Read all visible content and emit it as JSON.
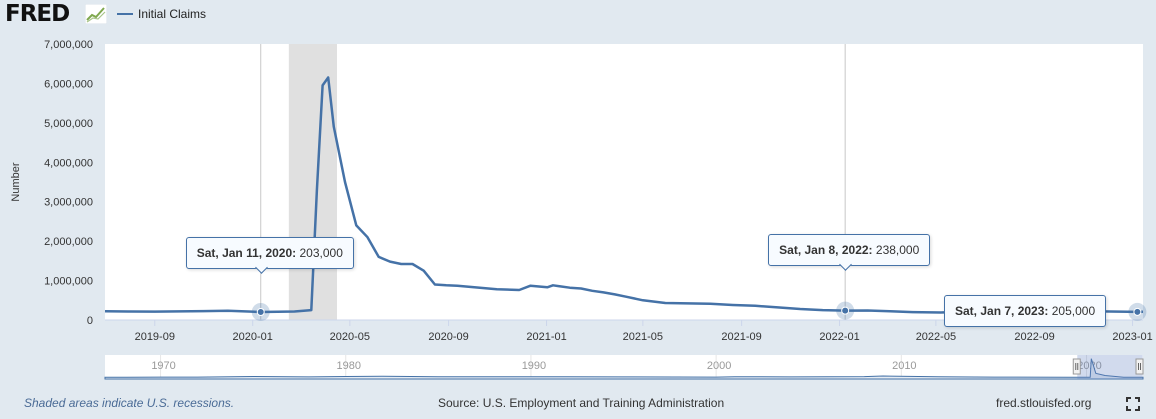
{
  "header": {
    "logo": "FRED",
    "logo_icon": "line-graph-icon",
    "legend_label": "Initial Claims",
    "legend_color": "#4572a7"
  },
  "chart_data": {
    "type": "line",
    "ylabel": "Number",
    "ylim": [
      0,
      7000000
    ],
    "yticks": [
      0,
      1000000,
      2000000,
      3000000,
      4000000,
      5000000,
      6000000,
      7000000
    ],
    "ytick_labels": [
      "0",
      "1,000,000",
      "2,000,000",
      "3,000,000",
      "4,000,000",
      "5,000,000",
      "6,000,000",
      "7,000,000"
    ],
    "xlim": [
      "2019-07-01",
      "2023-01-14"
    ],
    "xticks": [
      "2019-09-01",
      "2020-01-01",
      "2020-05-01",
      "2020-09-01",
      "2021-01-01",
      "2021-05-01",
      "2021-09-01",
      "2022-01-01",
      "2022-05-01",
      "2022-09-01",
      "2023-01-01"
    ],
    "xtick_labels": [
      "2019-09",
      "2020-01",
      "2020-05",
      "2020-09",
      "2021-01",
      "2021-05",
      "2021-09",
      "2022-01",
      "2022-05",
      "2022-09",
      "2023-01"
    ],
    "recession": [
      "2020-02-15",
      "2020-04-15"
    ],
    "grid": "vertical lines at highlighted points",
    "series_color": "#4572a7",
    "series": [
      {
        "name": "Initial Claims",
        "x": [
          "2019-07-01",
          "2019-08-01",
          "2019-09-01",
          "2019-10-01",
          "2019-11-01",
          "2019-12-01",
          "2020-01-11",
          "2020-02-01",
          "2020-02-22",
          "2020-03-14",
          "2020-03-21",
          "2020-03-28",
          "2020-04-04",
          "2020-04-11",
          "2020-04-25",
          "2020-05-09",
          "2020-05-23",
          "2020-06-06",
          "2020-06-20",
          "2020-07-04",
          "2020-07-18",
          "2020-08-01",
          "2020-08-15",
          "2020-08-29",
          "2020-09-12",
          "2020-10-03",
          "2020-10-31",
          "2020-11-28",
          "2020-12-12",
          "2021-01-02",
          "2021-01-09",
          "2021-01-16",
          "2021-01-30",
          "2021-02-13",
          "2021-02-27",
          "2021-03-13",
          "2021-03-27",
          "2021-04-10",
          "2021-05-01",
          "2021-05-29",
          "2021-06-26",
          "2021-07-24",
          "2021-08-21",
          "2021-09-18",
          "2021-10-16",
          "2021-11-13",
          "2021-12-11",
          "2022-01-08",
          "2022-02-05",
          "2022-03-05",
          "2022-04-02",
          "2022-05-07",
          "2022-06-04",
          "2022-07-02",
          "2022-08-06",
          "2022-09-03",
          "2022-10-08",
          "2022-11-05",
          "2022-12-03",
          "2023-01-07",
          "2023-01-14"
        ],
        "values": [
          220000,
          215000,
          212000,
          218000,
          225000,
          235000,
          203000,
          210000,
          215000,
          250000,
          3300000,
          5950000,
          6150000,
          4900000,
          3500000,
          2400000,
          2100000,
          1600000,
          1480000,
          1420000,
          1420000,
          1250000,
          900000,
          880000,
          870000,
          830000,
          780000,
          760000,
          870000,
          830000,
          880000,
          860000,
          820000,
          800000,
          740000,
          700000,
          650000,
          590000,
          500000,
          430000,
          420000,
          410000,
          380000,
          360000,
          320000,
          280000,
          250000,
          238000,
          240000,
          220000,
          200000,
          190000,
          210000,
          230000,
          215000,
          205000,
          220000,
          225000,
          215000,
          205000,
          210000
        ]
      }
    ],
    "tooltips": [
      {
        "date": "Sat, Jan 11, 2020:",
        "value": "203,000"
      },
      {
        "date": "Sat, Jan 8, 2022:",
        "value": "238,000"
      },
      {
        "date": "Sat, Jan 7, 2023:",
        "value": "205,000"
      }
    ]
  },
  "navigator": {
    "labels": [
      "1970",
      "1980",
      "1990",
      "2000",
      "2010",
      "2020"
    ],
    "range_start_year": 1967,
    "range_end_year": 2023.05,
    "selection": [
      "2019-07-01",
      "2023-01-14"
    ],
    "values": [
      {
        "year": 1967,
        "v": 220000
      },
      {
        "year": 1970,
        "v": 290000
      },
      {
        "year": 1972,
        "v": 300000
      },
      {
        "year": 1975,
        "v": 480000
      },
      {
        "year": 1978,
        "v": 340000
      },
      {
        "year": 1980,
        "v": 470000
      },
      {
        "year": 1982,
        "v": 580000
      },
      {
        "year": 1985,
        "v": 380000
      },
      {
        "year": 1990,
        "v": 420000
      },
      {
        "year": 1992,
        "v": 420000
      },
      {
        "year": 1995,
        "v": 360000
      },
      {
        "year": 2000,
        "v": 300000
      },
      {
        "year": 2001,
        "v": 420000
      },
      {
        "year": 2004,
        "v": 340000
      },
      {
        "year": 2008,
        "v": 450000
      },
      {
        "year": 2009,
        "v": 650000
      },
      {
        "year": 2012,
        "v": 370000
      },
      {
        "year": 2015,
        "v": 280000
      },
      {
        "year": 2019,
        "v": 215000
      },
      {
        "year": 2020.2,
        "v": 250000
      },
      {
        "year": 2020.26,
        "v": 6150000
      },
      {
        "year": 2020.5,
        "v": 1500000
      },
      {
        "year": 2021,
        "v": 800000
      },
      {
        "year": 2022,
        "v": 230000
      },
      {
        "year": 2023.05,
        "v": 210000
      }
    ]
  },
  "footer": {
    "note": "Shaded areas indicate U.S. recessions.",
    "source": "Source: U.S. Employment and Training Administration",
    "url": "fred.stlouisfed.org",
    "fullscreen_icon": "fullscreen-icon"
  }
}
